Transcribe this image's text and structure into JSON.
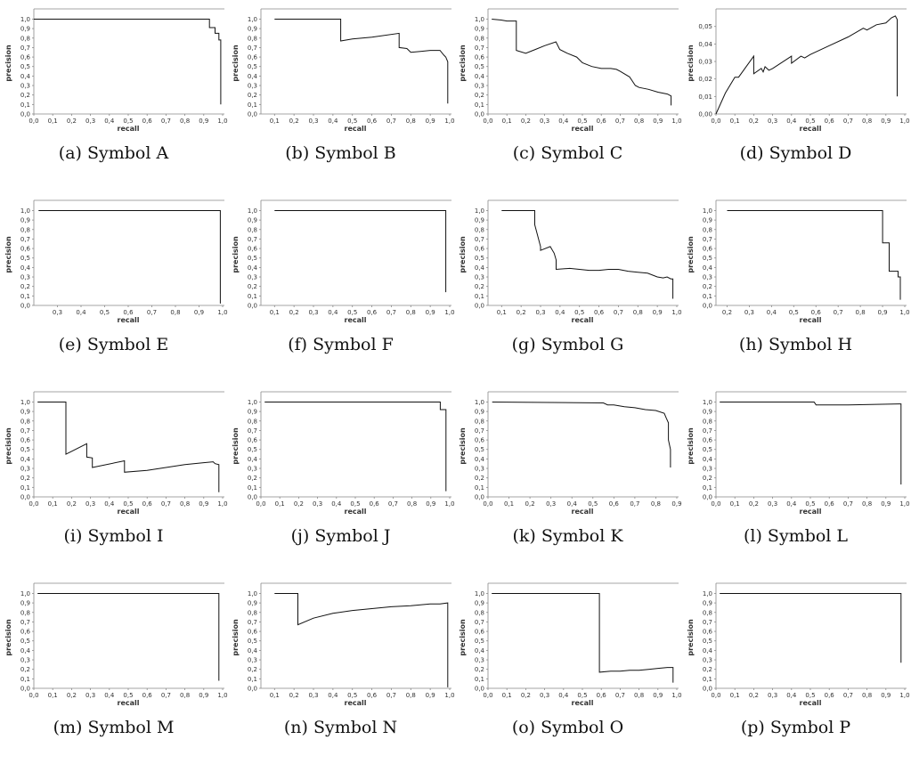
{
  "chart_data": [
    {
      "type": "line",
      "id": "a",
      "caption_label": "(a)",
      "caption_text": "Symbol A",
      "xlabel": "recall",
      "ylabel": "precision",
      "xticks": [
        "0,0",
        "0,1",
        "0,2",
        "0,3",
        "0,4",
        "0,5",
        "0,6",
        "0,7",
        "0,8",
        "0,9",
        "1,0"
      ],
      "yticks": [
        "0,0",
        "0,1",
        "0,2",
        "0,3",
        "0,4",
        "0,5",
        "0,6",
        "0,7",
        "0,8",
        "0,9",
        "1,0"
      ],
      "xlim": [
        0,
        1.0
      ],
      "ylim": [
        0,
        1.07
      ],
      "ytick_values": [
        0,
        0.1,
        0.2,
        0.3,
        0.4,
        0.5,
        0.6,
        0.7,
        0.8,
        0.9,
        1.0
      ],
      "x": [
        0,
        0.93,
        0.93,
        0.96,
        0.96,
        0.98,
        0.98,
        0.99,
        0.99
      ],
      "y": [
        1.0,
        1.0,
        0.91,
        0.91,
        0.85,
        0.85,
        0.78,
        0.78,
        0.1
      ]
    },
    {
      "type": "line",
      "id": "b",
      "caption_label": "(b)",
      "caption_text": "Symbol B",
      "xlabel": "recall",
      "ylabel": "precision",
      "xticks": [
        "0,1",
        "0,2",
        "0,3",
        "0,4",
        "0,5",
        "0,6",
        "0,7",
        "0,8",
        "0,9",
        "1,0"
      ],
      "yticks": [
        "0,0",
        "0,1",
        "0,2",
        "0,3",
        "0,4",
        "0,5",
        "0,6",
        "0,7",
        "0,8",
        "0,9",
        "1,0"
      ],
      "xlim": [
        0.03,
        1.0
      ],
      "ylim": [
        0,
        1.07
      ],
      "ytick_values": [
        0,
        0.1,
        0.2,
        0.3,
        0.4,
        0.5,
        0.6,
        0.7,
        0.8,
        0.9,
        1.0
      ],
      "x": [
        0.1,
        0.44,
        0.44,
        0.5,
        0.6,
        0.74,
        0.74,
        0.78,
        0.8,
        0.85,
        0.9,
        0.95,
        0.97,
        0.98,
        0.99,
        0.99
      ],
      "y": [
        1.0,
        1.0,
        0.77,
        0.79,
        0.81,
        0.85,
        0.7,
        0.69,
        0.65,
        0.66,
        0.67,
        0.67,
        0.62,
        0.6,
        0.55,
        0.11
      ]
    },
    {
      "type": "line",
      "id": "c",
      "caption_label": "(c)",
      "caption_text": "Symbol C",
      "xlabel": "recall",
      "ylabel": "precision",
      "xticks": [
        "0,0",
        "0,1",
        "0,2",
        "0,3",
        "0,4",
        "0,5",
        "0,6",
        "0,7",
        "0,8",
        "0,9",
        "1,0"
      ],
      "yticks": [
        "0,0",
        "0,1",
        "0,2",
        "0,3",
        "0,4",
        "0,5",
        "0,6",
        "0,7",
        "0,8",
        "0,9",
        "1,0"
      ],
      "xlim": [
        0,
        1.0
      ],
      "ylim": [
        0,
        1.07
      ],
      "ytick_values": [
        0,
        0.1,
        0.2,
        0.3,
        0.4,
        0.5,
        0.6,
        0.7,
        0.8,
        0.9,
        1.0
      ],
      "x": [
        0.02,
        0.07,
        0.1,
        0.15,
        0.15,
        0.2,
        0.25,
        0.3,
        0.36,
        0.38,
        0.42,
        0.47,
        0.5,
        0.55,
        0.6,
        0.65,
        0.68,
        0.7,
        0.75,
        0.78,
        0.8,
        0.85,
        0.9,
        0.95,
        0.97,
        0.97
      ],
      "y": [
        1.0,
        0.99,
        0.98,
        0.98,
        0.67,
        0.64,
        0.68,
        0.72,
        0.76,
        0.68,
        0.64,
        0.6,
        0.54,
        0.5,
        0.48,
        0.48,
        0.47,
        0.45,
        0.39,
        0.3,
        0.28,
        0.26,
        0.23,
        0.21,
        0.19,
        0.09
      ]
    },
    {
      "type": "line",
      "id": "d",
      "caption_label": "(d)",
      "caption_text": "Symbol D",
      "xlabel": "recall",
      "ylabel": "precision",
      "xticks": [
        "0,0",
        "0,1",
        "0,2",
        "0,3",
        "0,4",
        "0,5",
        "0,6",
        "0,7",
        "0,8",
        "0,9",
        "1,0"
      ],
      "yticks": [
        "0,00",
        "0,01",
        "0,02",
        "0,03",
        "0,04",
        "0,05"
      ],
      "xlim": [
        0,
        1.0
      ],
      "ylim": [
        0,
        0.058
      ],
      "ytick_values": [
        0,
        0.01,
        0.02,
        0.03,
        0.04,
        0.05
      ],
      "x": [
        0,
        0.05,
        0.1,
        0.12,
        0.2,
        0.2,
        0.24,
        0.25,
        0.26,
        0.28,
        0.3,
        0.4,
        0.4,
        0.45,
        0.47,
        0.5,
        0.6,
        0.7,
        0.78,
        0.8,
        0.85,
        0.9,
        0.93,
        0.95,
        0.96,
        0.96
      ],
      "y": [
        0,
        0.012,
        0.021,
        0.021,
        0.033,
        0.023,
        0.026,
        0.024,
        0.027,
        0.025,
        0.026,
        0.033,
        0.029,
        0.033,
        0.032,
        0.034,
        0.039,
        0.044,
        0.049,
        0.048,
        0.051,
        0.052,
        0.055,
        0.056,
        0.054,
        0.01
      ]
    },
    {
      "type": "line",
      "id": "e",
      "caption_label": "(e)",
      "caption_text": "Symbol E",
      "xlabel": "recall",
      "ylabel": "precision",
      "xticks": [
        "0,3",
        "0,4",
        "0,5",
        "0,6",
        "0,7",
        "0,8",
        "0,9",
        "1,0"
      ],
      "yticks": [
        "0,0",
        "0,1",
        "0,2",
        "0,3",
        "0,4",
        "0,5",
        "0,6",
        "0,7",
        "0,8",
        "0,9",
        "1,0"
      ],
      "xlim": [
        0.2,
        1.0
      ],
      "ylim": [
        0,
        1.07
      ],
      "ytick_values": [
        0,
        0.1,
        0.2,
        0.3,
        0.4,
        0.5,
        0.6,
        0.7,
        0.8,
        0.9,
        1.0
      ],
      "x": [
        0.22,
        0.99,
        0.99
      ],
      "y": [
        1.0,
        1.0,
        0.02
      ]
    },
    {
      "type": "line",
      "id": "f",
      "caption_label": "(f)",
      "caption_text": "Symbol F",
      "xlabel": "recall",
      "ylabel": "precision",
      "xticks": [
        "0,1",
        "0,2",
        "0,3",
        "0,4",
        "0,5",
        "0,6",
        "0,7",
        "0,8",
        "0,9",
        "1,0"
      ],
      "yticks": [
        "0,0",
        "0,1",
        "0,2",
        "0,3",
        "0,4",
        "0,5",
        "0,6",
        "0,7",
        "0,8",
        "0,9",
        "1,0"
      ],
      "xlim": [
        0.03,
        1.0
      ],
      "ylim": [
        0,
        1.07
      ],
      "ytick_values": [
        0,
        0.1,
        0.2,
        0.3,
        0.4,
        0.5,
        0.6,
        0.7,
        0.8,
        0.9,
        1.0
      ],
      "x": [
        0.1,
        0.98,
        0.98
      ],
      "y": [
        1.0,
        1.0,
        0.14
      ]
    },
    {
      "type": "line",
      "id": "g",
      "caption_label": "(g)",
      "caption_text": "Symbol G",
      "xlabel": "recall",
      "ylabel": "precision",
      "xticks": [
        "0,1",
        "0,2",
        "0,3",
        "0,4",
        "0,5",
        "0,6",
        "0,7",
        "0,8",
        "0,9",
        "1,0"
      ],
      "yticks": [
        "0,0",
        "0,1",
        "0,2",
        "0,3",
        "0,4",
        "0,5",
        "0,6",
        "0,7",
        "0,8",
        "0,9",
        "1,0"
      ],
      "xlim": [
        0.03,
        1.0
      ],
      "ylim": [
        0,
        1.07
      ],
      "ytick_values": [
        0,
        0.1,
        0.2,
        0.3,
        0.4,
        0.5,
        0.6,
        0.7,
        0.8,
        0.9,
        1.0
      ],
      "x": [
        0.1,
        0.27,
        0.27,
        0.3,
        0.3,
        0.35,
        0.37,
        0.38,
        0.38,
        0.45,
        0.5,
        0.55,
        0.6,
        0.65,
        0.7,
        0.75,
        0.8,
        0.85,
        0.9,
        0.93,
        0.95,
        0.97,
        0.98,
        0.98
      ],
      "y": [
        1.0,
        1.0,
        0.85,
        0.62,
        0.58,
        0.62,
        0.55,
        0.48,
        0.38,
        0.39,
        0.38,
        0.37,
        0.37,
        0.38,
        0.38,
        0.36,
        0.35,
        0.34,
        0.3,
        0.29,
        0.3,
        0.28,
        0.28,
        0.07
      ]
    },
    {
      "type": "line",
      "id": "h",
      "caption_label": "(h)",
      "caption_text": "Symbol H",
      "xlabel": "recall",
      "ylabel": "precision",
      "xticks": [
        "0,2",
        "0,3",
        "0,4",
        "0,5",
        "0,6",
        "0,7",
        "0,8",
        "0,9",
        "1,0"
      ],
      "yticks": [
        "0,0",
        "0,1",
        "0,2",
        "0,3",
        "0,4",
        "0,5",
        "0,6",
        "0,7",
        "0,8",
        "0,9",
        "1,0"
      ],
      "xlim": [
        0.15,
        1.0
      ],
      "ylim": [
        0,
        1.07
      ],
      "ytick_values": [
        0,
        0.1,
        0.2,
        0.3,
        0.4,
        0.5,
        0.6,
        0.7,
        0.8,
        0.9,
        1.0
      ],
      "x": [
        0.2,
        0.9,
        0.9,
        0.93,
        0.93,
        0.97,
        0.97,
        0.98,
        0.98
      ],
      "y": [
        1.0,
        1.0,
        0.66,
        0.66,
        0.36,
        0.36,
        0.3,
        0.3,
        0.06
      ]
    },
    {
      "type": "line",
      "id": "i",
      "caption_label": "(i)",
      "caption_text": "Symbol I",
      "xlabel": "recall",
      "ylabel": "precision",
      "xticks": [
        "0,0",
        "0,1",
        "0,2",
        "0,3",
        "0,4",
        "0,5",
        "0,6",
        "0,7",
        "0,8",
        "0,9",
        "1,0"
      ],
      "yticks": [
        "0,0",
        "0,1",
        "0,2",
        "0,3",
        "0,4",
        "0,5",
        "0,6",
        "0,7",
        "0,8",
        "0,9",
        "1,0"
      ],
      "xlim": [
        0,
        1.0
      ],
      "ylim": [
        0,
        1.07
      ],
      "ytick_values": [
        0,
        0.1,
        0.2,
        0.3,
        0.4,
        0.5,
        0.6,
        0.7,
        0.8,
        0.9,
        1.0
      ],
      "x": [
        0.02,
        0.17,
        0.17,
        0.28,
        0.28,
        0.31,
        0.31,
        0.48,
        0.48,
        0.6,
        0.7,
        0.8,
        0.9,
        0.95,
        0.96,
        0.98,
        0.98
      ],
      "y": [
        1.0,
        1.0,
        0.45,
        0.56,
        0.42,
        0.41,
        0.31,
        0.38,
        0.26,
        0.28,
        0.31,
        0.34,
        0.36,
        0.37,
        0.35,
        0.34,
        0.05
      ]
    },
    {
      "type": "line",
      "id": "j",
      "caption_label": "(j)",
      "caption_text": "Symbol J",
      "xlabel": "recall",
      "ylabel": "precision",
      "xticks": [
        "0,0",
        "0,1",
        "0,2",
        "0,3",
        "0,4",
        "0,5",
        "0,6",
        "0,7",
        "0,8",
        "0,9",
        "1,0"
      ],
      "yticks": [
        "0,0",
        "0,1",
        "0,2",
        "0,3",
        "0,4",
        "0,5",
        "0,6",
        "0,7",
        "0,8",
        "0,9",
        "1,0"
      ],
      "xlim": [
        0,
        1.0
      ],
      "ylim": [
        0,
        1.07
      ],
      "ytick_values": [
        0,
        0.1,
        0.2,
        0.3,
        0.4,
        0.5,
        0.6,
        0.7,
        0.8,
        0.9,
        1.0
      ],
      "x": [
        0.02,
        0.95,
        0.95,
        0.98,
        0.98
      ],
      "y": [
        1.0,
        1.0,
        0.92,
        0.92,
        0.06
      ]
    },
    {
      "type": "line",
      "id": "k",
      "caption_label": "(k)",
      "caption_text": "Symbol K",
      "xlabel": "recall",
      "ylabel": "precision",
      "xticks": [
        "0,0",
        "0,1",
        "0,2",
        "0,3",
        "0,4",
        "0,5",
        "0,6",
        "0,7",
        "0,8",
        "0,9"
      ],
      "yticks": [
        "0,0",
        "0,1",
        "0,2",
        "0,3",
        "0,4",
        "0,5",
        "0,6",
        "0,7",
        "0,8",
        "0,9",
        "1,0"
      ],
      "xlim": [
        0,
        0.9
      ],
      "ylim": [
        0,
        1.07
      ],
      "ytick_values": [
        0,
        0.1,
        0.2,
        0.3,
        0.4,
        0.5,
        0.6,
        0.7,
        0.8,
        0.9,
        1.0
      ],
      "x": [
        0.02,
        0.55,
        0.57,
        0.6,
        0.65,
        0.7,
        0.75,
        0.8,
        0.84,
        0.85,
        0.86,
        0.86,
        0.87,
        0.87
      ],
      "y": [
        1.0,
        0.99,
        0.97,
        0.97,
        0.95,
        0.94,
        0.92,
        0.91,
        0.88,
        0.83,
        0.78,
        0.6,
        0.5,
        0.31
      ]
    },
    {
      "type": "line",
      "id": "l",
      "caption_label": "(l)",
      "caption_text": "Symbol L",
      "xlabel": "recall",
      "ylabel": "precision",
      "xticks": [
        "0,0",
        "0,1",
        "0,2",
        "0,3",
        "0,4",
        "0,5",
        "0,6",
        "0,7",
        "0,8",
        "0,9",
        "1,0"
      ],
      "yticks": [
        "0,0",
        "0,1",
        "0,2",
        "0,3",
        "0,4",
        "0,5",
        "0,6",
        "0,7",
        "0,8",
        "0,9",
        "1,0"
      ],
      "xlim": [
        0,
        1.0
      ],
      "ylim": [
        0,
        1.07
      ],
      "ytick_values": [
        0,
        0.1,
        0.2,
        0.3,
        0.4,
        0.5,
        0.6,
        0.7,
        0.8,
        0.9,
        1.0
      ],
      "x": [
        0.02,
        0.52,
        0.53,
        0.7,
        0.97,
        0.98,
        0.98
      ],
      "y": [
        1.0,
        1.0,
        0.97,
        0.97,
        0.98,
        0.98,
        0.13
      ]
    },
    {
      "type": "line",
      "id": "m",
      "caption_label": "(m)",
      "caption_text": "Symbol M",
      "xlabel": "recall",
      "ylabel": "precision",
      "xticks": [
        "0,0",
        "0,1",
        "0,2",
        "0,3",
        "0,4",
        "0,5",
        "0,6",
        "0,7",
        "0,8",
        "0,9",
        "1,0"
      ],
      "yticks": [
        "0,0",
        "0,1",
        "0,2",
        "0,3",
        "0,4",
        "0,5",
        "0,6",
        "0,7",
        "0,8",
        "0,9",
        "1,0"
      ],
      "xlim": [
        0,
        1.0
      ],
      "ylim": [
        0,
        1.07
      ],
      "ytick_values": [
        0,
        0.1,
        0.2,
        0.3,
        0.4,
        0.5,
        0.6,
        0.7,
        0.8,
        0.9,
        1.0
      ],
      "x": [
        0.02,
        0.98,
        0.98
      ],
      "y": [
        1.0,
        1.0,
        0.08
      ]
    },
    {
      "type": "line",
      "id": "n",
      "caption_label": "(n)",
      "caption_text": "Symbol N",
      "xlabel": "recall",
      "ylabel": "precision",
      "xticks": [
        "0,1",
        "0,2",
        "0,3",
        "0,4",
        "0,5",
        "0,6",
        "0,7",
        "0,8",
        "0,9",
        "1,0"
      ],
      "yticks": [
        "0,0",
        "0,1",
        "0,2",
        "0,3",
        "0,4",
        "0,5",
        "0,6",
        "0,7",
        "0,8",
        "0,9",
        "1,0"
      ],
      "xlim": [
        0.03,
        1.0
      ],
      "ylim": [
        0,
        1.07
      ],
      "ytick_values": [
        0,
        0.1,
        0.2,
        0.3,
        0.4,
        0.5,
        0.6,
        0.7,
        0.8,
        0.9,
        1.0
      ],
      "x": [
        0.1,
        0.22,
        0.22,
        0.3,
        0.4,
        0.5,
        0.6,
        0.7,
        0.8,
        0.9,
        0.95,
        0.99,
        0.99
      ],
      "y": [
        1.0,
        1.0,
        0.67,
        0.74,
        0.79,
        0.82,
        0.84,
        0.86,
        0.87,
        0.89,
        0.89,
        0.9,
        0.01
      ]
    },
    {
      "type": "line",
      "id": "o",
      "caption_label": "(o)",
      "caption_text": "Symbol O",
      "xlabel": "recall",
      "ylabel": "precision",
      "xticks": [
        "0,0",
        "0,1",
        "0,2",
        "0,3",
        "0,4",
        "0,5",
        "0,6",
        "0,7",
        "0,8",
        "0,9",
        "1,0"
      ],
      "yticks": [
        "0,0",
        "0,1",
        "0,2",
        "0,3",
        "0,4",
        "0,5",
        "0,6",
        "0,7",
        "0,8",
        "0,9",
        "1,0"
      ],
      "xlim": [
        0,
        1.0
      ],
      "ylim": [
        0,
        1.07
      ],
      "ytick_values": [
        0,
        0.1,
        0.2,
        0.3,
        0.4,
        0.5,
        0.6,
        0.7,
        0.8,
        0.9,
        1.0
      ],
      "x": [
        0.02,
        0.59,
        0.59,
        0.65,
        0.7,
        0.75,
        0.8,
        0.85,
        0.9,
        0.95,
        0.98,
        0.98
      ],
      "y": [
        1.0,
        1.0,
        0.17,
        0.18,
        0.18,
        0.19,
        0.19,
        0.2,
        0.21,
        0.22,
        0.22,
        0.06
      ]
    },
    {
      "type": "line",
      "id": "p",
      "caption_label": "(p)",
      "caption_text": "Symbol P",
      "xlabel": "recall",
      "ylabel": "precision",
      "xticks": [
        "0,0",
        "0,1",
        "0,2",
        "0,3",
        "0,4",
        "0,5",
        "0,6",
        "0,7",
        "0,8",
        "0,9",
        "1,0"
      ],
      "yticks": [
        "0,0",
        "0,1",
        "0,2",
        "0,3",
        "0,4",
        "0,5",
        "0,6",
        "0,7",
        "0,8",
        "0,9",
        "1,0"
      ],
      "xlim": [
        0,
        1.0
      ],
      "ylim": [
        0,
        1.07
      ],
      "ytick_values": [
        0,
        0.1,
        0.2,
        0.3,
        0.4,
        0.5,
        0.6,
        0.7,
        0.8,
        0.9,
        1.0
      ],
      "x": [
        0.02,
        0.98,
        0.98
      ],
      "y": [
        1.0,
        1.0,
        0.27
      ]
    }
  ]
}
